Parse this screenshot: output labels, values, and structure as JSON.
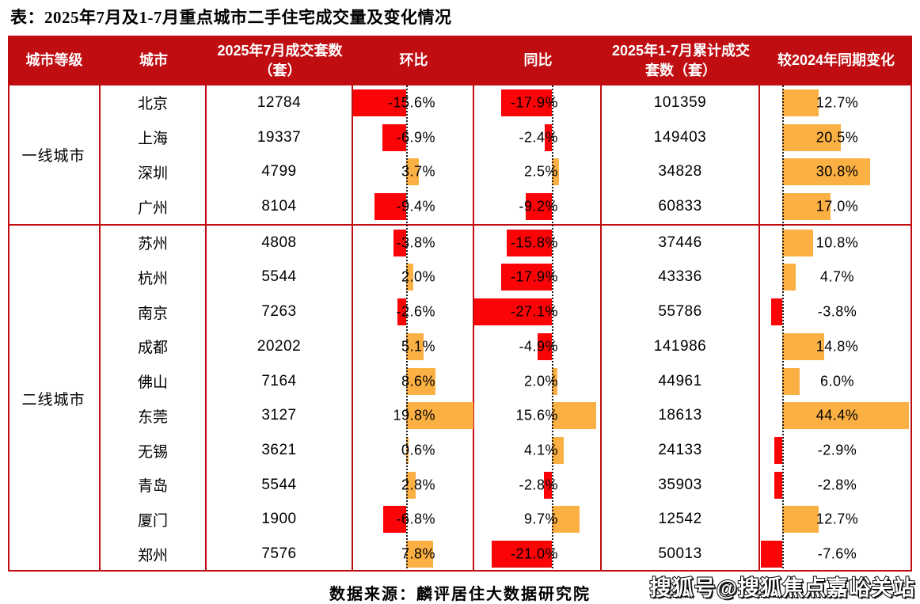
{
  "title": "表：2025年7月及1-7月重点城市二手住宅成交量及变化情况",
  "source": "数据来源：麟评居住大数据研究院",
  "watermark": "搜狐号@搜狐焦点嘉峪关站",
  "colors": {
    "header_bg": "#c00d12",
    "border": "#c00d12",
    "negative_bar": "#fb0407",
    "positive_bar": "#fbb043",
    "text": "#000000"
  },
  "chart_data": {
    "type": "table",
    "title": "表：2025年7月及1-7月重点城市二手住宅成交量及变化情况",
    "columns": [
      "城市等级",
      "城市",
      "2025年7月成交套数（套）",
      "环比",
      "同比",
      "2025年1-7月累计成交套数（套）",
      "较2024年同期变化"
    ],
    "bar_columns": [
      "环比",
      "同比",
      "较2024年同期变化"
    ],
    "groups": [
      {
        "tier": "一线城市",
        "rows": [
          {
            "city": "北京",
            "jul_2025": 12784,
            "mom_pct": -15.6,
            "yoy_pct": -17.9,
            "cum_jan_jul": 101359,
            "vs_2024_pct": 12.7
          },
          {
            "city": "上海",
            "jul_2025": 19337,
            "mom_pct": -6.9,
            "yoy_pct": -2.4,
            "cum_jan_jul": 149403,
            "vs_2024_pct": 20.5
          },
          {
            "city": "深圳",
            "jul_2025": 4799,
            "mom_pct": 3.7,
            "yoy_pct": 2.5,
            "cum_jan_jul": 34828,
            "vs_2024_pct": 30.8
          },
          {
            "city": "广州",
            "jul_2025": 8104,
            "mom_pct": -9.4,
            "yoy_pct": -9.2,
            "cum_jan_jul": 60833,
            "vs_2024_pct": 17.0
          }
        ]
      },
      {
        "tier": "二线城市",
        "rows": [
          {
            "city": "苏州",
            "jul_2025": 4808,
            "mom_pct": -3.8,
            "yoy_pct": -15.8,
            "cum_jan_jul": 37446,
            "vs_2024_pct": 10.8
          },
          {
            "city": "杭州",
            "jul_2025": 5544,
            "mom_pct": 2.0,
            "yoy_pct": -17.9,
            "cum_jan_jul": 43336,
            "vs_2024_pct": 4.7
          },
          {
            "city": "南京",
            "jul_2025": 7263,
            "mom_pct": -2.6,
            "yoy_pct": -27.1,
            "cum_jan_jul": 55786,
            "vs_2024_pct": -3.8
          },
          {
            "city": "成都",
            "jul_2025": 20202,
            "mom_pct": 5.1,
            "yoy_pct": -4.9,
            "cum_jan_jul": 141986,
            "vs_2024_pct": 14.8
          },
          {
            "city": "佛山",
            "jul_2025": 7164,
            "mom_pct": 8.6,
            "yoy_pct": 2.0,
            "cum_jan_jul": 44961,
            "vs_2024_pct": 6.0
          },
          {
            "city": "东莞",
            "jul_2025": 3127,
            "mom_pct": 19.8,
            "yoy_pct": 15.6,
            "cum_jan_jul": 18613,
            "vs_2024_pct": 44.4
          },
          {
            "city": "无锡",
            "jul_2025": 3621,
            "mom_pct": 0.6,
            "yoy_pct": 4.1,
            "cum_jan_jul": 24133,
            "vs_2024_pct": -2.9
          },
          {
            "city": "青岛",
            "jul_2025": 5544,
            "mom_pct": 2.8,
            "yoy_pct": -2.8,
            "cum_jan_jul": 35903,
            "vs_2024_pct": -2.8
          },
          {
            "city": "厦门",
            "jul_2025": 1900,
            "mom_pct": -6.8,
            "yoy_pct": 9.7,
            "cum_jan_jul": 12542,
            "vs_2024_pct": 12.7
          },
          {
            "city": "郑州",
            "jul_2025": 7576,
            "mom_pct": 7.8,
            "yoy_pct": -21.0,
            "cum_jan_jul": 50013,
            "vs_2024_pct": -7.6
          }
        ]
      }
    ]
  }
}
